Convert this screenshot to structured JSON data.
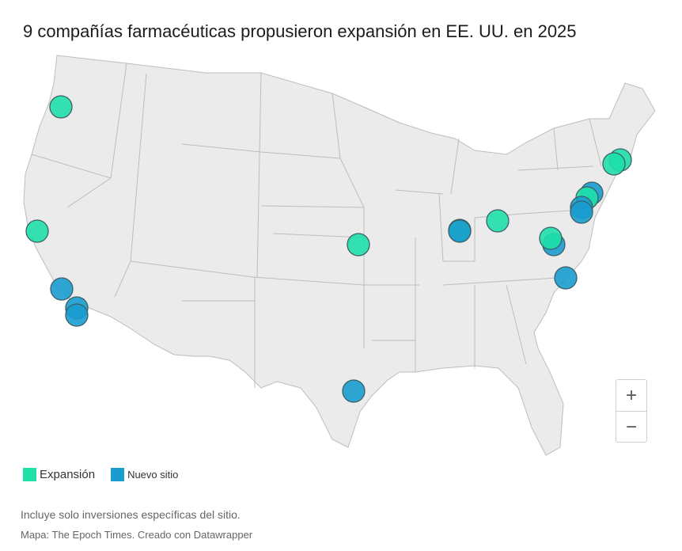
{
  "title": "9 compañías farmacéuticas propusieron expansión en EE. UU. en 2025",
  "legend": [
    {
      "label": "Expansión",
      "color": "#1ee0a8"
    },
    {
      "label": "Nuevo sitio",
      "color": "#1a9ccf"
    }
  ],
  "colors": {
    "land": "#ebebeb",
    "border": "#bdbdbd"
  },
  "zoom": {
    "in_label": "+",
    "out_label": "−"
  },
  "note": "Incluye solo inversiones específicas del sitio.",
  "source": "Mapa: The Epoch Times. Creado con Datawrapper",
  "sites": [
    {
      "place": "Northern Oregon",
      "type": "expansion"
    },
    {
      "place": "Northern California",
      "type": "expansion"
    },
    {
      "place": "Central California",
      "type": "new"
    },
    {
      "place": "Southern California",
      "type": "new"
    },
    {
      "place": "Southern California",
      "type": "new"
    },
    {
      "place": "Kansas City area",
      "type": "expansion"
    },
    {
      "place": "Houston area",
      "type": "new"
    },
    {
      "place": "Indiana",
      "type": "expansion"
    },
    {
      "place": "Indiana",
      "type": "new"
    },
    {
      "place": "Ohio",
      "type": "expansion"
    },
    {
      "place": "North Carolina",
      "type": "new"
    },
    {
      "place": "Virginia",
      "type": "new"
    },
    {
      "place": "Virginia",
      "type": "expansion"
    },
    {
      "place": "Pennsylvania / New Jersey",
      "type": "new"
    },
    {
      "place": "New Jersey",
      "type": "expansion"
    },
    {
      "place": "New Jersey",
      "type": "new"
    },
    {
      "place": "New Jersey",
      "type": "new"
    },
    {
      "place": "Massachusetts",
      "type": "expansion"
    },
    {
      "place": "Massachusetts",
      "type": "expansion"
    }
  ]
}
